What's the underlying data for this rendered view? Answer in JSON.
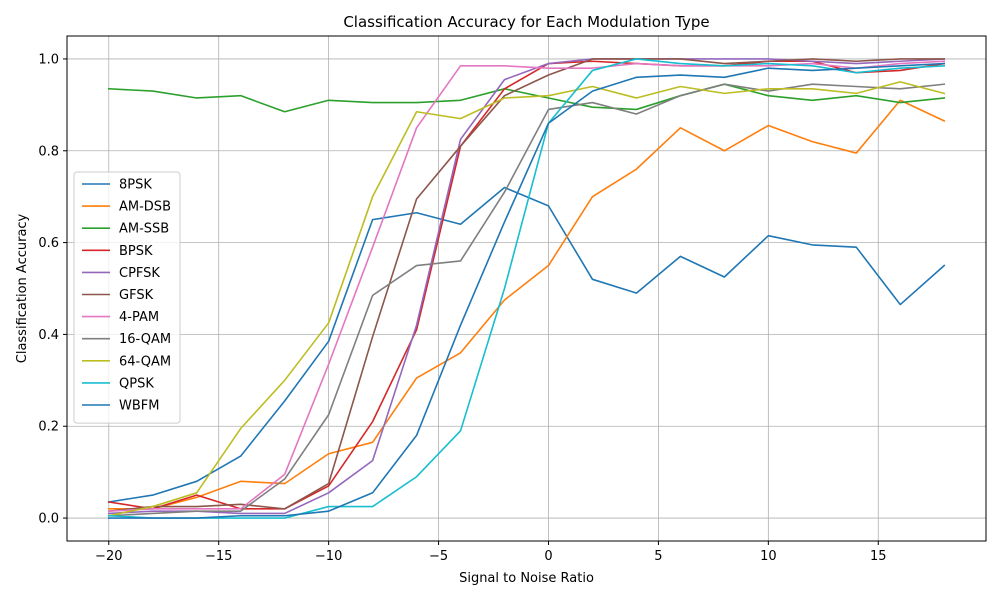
{
  "chart_data": {
    "type": "line",
    "title": "Classification Accuracy for Each Modulation Type",
    "xlabel": "Signal to Noise Ratio",
    "ylabel": "Classification Accuracy",
    "xlim": [
      -21.9,
      19.9
    ],
    "ylim": [
      -0.05,
      1.05
    ],
    "x_ticks": [
      -20,
      -15,
      -10,
      -5,
      0,
      5,
      10,
      15
    ],
    "y_ticks": [
      0.0,
      0.2,
      0.4,
      0.6,
      0.8,
      1.0
    ],
    "x_tick_labels": [
      "−20",
      "−15",
      "−10",
      "−5",
      "0",
      "5",
      "10",
      "15"
    ],
    "y_tick_labels": [
      "0.0",
      "0.2",
      "0.4",
      "0.6",
      "0.8",
      "1.0"
    ],
    "grid": true,
    "legend_position": "center-left",
    "x": [
      -20,
      -18,
      -16,
      -14,
      -12,
      -10,
      -8,
      -6,
      -4,
      -2,
      0,
      2,
      4,
      6,
      8,
      10,
      12,
      14,
      16,
      18
    ],
    "series": [
      {
        "name": "8PSK",
        "color": "#1f77b4",
        "values": [
          0.035,
          0.05,
          0.08,
          0.135,
          0.255,
          0.385,
          0.65,
          0.665,
          0.64,
          0.72,
          0.68,
          0.52,
          0.49,
          0.57,
          0.525,
          0.615,
          0.595,
          0.59,
          0.465,
          0.55
        ]
      },
      {
        "name": "AM-DSB",
        "color": "#ff7f0e",
        "values": [
          0.02,
          0.02,
          0.045,
          0.08,
          0.075,
          0.14,
          0.165,
          0.305,
          0.36,
          0.475,
          0.55,
          0.7,
          0.76,
          0.85,
          0.8,
          0.855,
          0.82,
          0.795,
          0.91,
          0.865
        ]
      },
      {
        "name": "AM-SSB",
        "color": "#2ca02c",
        "values": [
          0.935,
          0.93,
          0.915,
          0.92,
          0.885,
          0.91,
          0.905,
          0.905,
          0.91,
          0.935,
          0.915,
          0.895,
          0.89,
          0.92,
          0.945,
          0.92,
          0.91,
          0.92,
          0.905,
          0.915
        ]
      },
      {
        "name": "BPSK",
        "color": "#d62728",
        "values": [
          0.035,
          0.02,
          0.05,
          0.02,
          0.02,
          0.07,
          0.21,
          0.41,
          0.81,
          0.935,
          0.99,
          0.995,
          0.99,
          0.985,
          0.985,
          0.995,
          0.995,
          0.97,
          0.975,
          0.99
        ]
      },
      {
        "name": "CPFSK",
        "color": "#9467bd",
        "values": [
          0.01,
          0.015,
          0.015,
          0.01,
          0.01,
          0.055,
          0.125,
          0.42,
          0.825,
          0.955,
          0.99,
          1.0,
          1.0,
          1.0,
          1.0,
          1.0,
          0.995,
          0.99,
          0.995,
          1.0
        ]
      },
      {
        "name": "GFSK",
        "color": "#8c564b",
        "values": [
          0.015,
          0.025,
          0.025,
          0.03,
          0.02,
          0.075,
          0.395,
          0.695,
          0.81,
          0.92,
          0.965,
          1.0,
          1.0,
          1.0,
          0.99,
          0.995,
          1.0,
          0.995,
          1.0,
          1.0
        ]
      },
      {
        "name": "4-PAM",
        "color": "#e377c2",
        "values": [
          0.015,
          0.02,
          0.02,
          0.02,
          0.095,
          0.335,
          0.59,
          0.85,
          0.985,
          0.985,
          0.98,
          0.98,
          0.99,
          0.985,
          0.985,
          0.985,
          0.99,
          0.98,
          0.99,
          0.995
        ]
      },
      {
        "name": "16-QAM",
        "color": "#7f7f7f",
        "values": [
          0.005,
          0.01,
          0.015,
          0.015,
          0.085,
          0.225,
          0.485,
          0.55,
          0.56,
          0.71,
          0.89,
          0.905,
          0.88,
          0.92,
          0.945,
          0.93,
          0.945,
          0.94,
          0.935,
          0.945
        ]
      },
      {
        "name": "64-QAM",
        "color": "#bcbd22",
        "values": [
          0.005,
          0.025,
          0.055,
          0.195,
          0.3,
          0.425,
          0.7,
          0.885,
          0.87,
          0.915,
          0.92,
          0.94,
          0.915,
          0.94,
          0.925,
          0.935,
          0.935,
          0.925,
          0.95,
          0.925
        ]
      },
      {
        "name": "QPSK",
        "color": "#17becf",
        "values": [
          0.005,
          0.0,
          0.0,
          0.0,
          0.0,
          0.025,
          0.025,
          0.09,
          0.19,
          0.5,
          0.86,
          0.975,
          1.0,
          0.99,
          0.985,
          0.99,
          0.985,
          0.97,
          0.98,
          0.985
        ]
      },
      {
        "name": "WBFM",
        "color": "#1f77b4",
        "values": [
          0.0,
          0.0,
          0.0,
          0.005,
          0.005,
          0.015,
          0.055,
          0.18,
          0.42,
          0.645,
          0.86,
          0.93,
          0.96,
          0.965,
          0.96,
          0.98,
          0.975,
          0.98,
          0.985,
          0.99
        ]
      }
    ]
  }
}
